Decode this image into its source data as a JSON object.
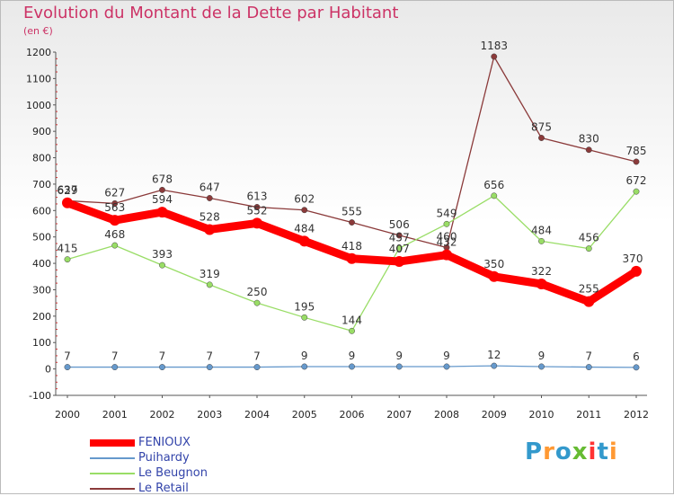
{
  "title": "Evolution du Montant de la Dette par Habitant",
  "subtitle": "(en €)",
  "logo_text": "Proxiti",
  "chart_data": {
    "type": "line",
    "x": [
      "2000",
      "2001",
      "2002",
      "2003",
      "2004",
      "2005",
      "2006",
      "2007",
      "2008",
      "2009",
      "2010",
      "2011",
      "2012"
    ],
    "yticks": [
      -100,
      0,
      100,
      200,
      300,
      400,
      500,
      600,
      700,
      800,
      900,
      1000,
      1100,
      1200
    ],
    "ylim": [
      -100,
      1200
    ],
    "grid": false,
    "legend_position": "bottom-left",
    "series": [
      {
        "name": "FENIOUX",
        "color": "#ff0000",
        "values": [
          629,
          563,
          594,
          528,
          552,
          484,
          418,
          407,
          432,
          350,
          322,
          255,
          370
        ]
      },
      {
        "name": "Puihardy",
        "color": "#6699cc",
        "values": [
          7,
          7,
          7,
          7,
          7,
          9,
          9,
          9,
          9,
          12,
          9,
          7,
          6
        ]
      },
      {
        "name": "Le Beugnon",
        "color": "#99dd66",
        "values": [
          415,
          468,
          393,
          319,
          250,
          195,
          144,
          457,
          549,
          656,
          484,
          456,
          672
        ]
      },
      {
        "name": "Le Retail",
        "color": "#8b3a3a",
        "values": [
          637,
          627,
          678,
          647,
          613,
          602,
          555,
          506,
          460,
          1183,
          875,
          830,
          785
        ]
      }
    ]
  }
}
